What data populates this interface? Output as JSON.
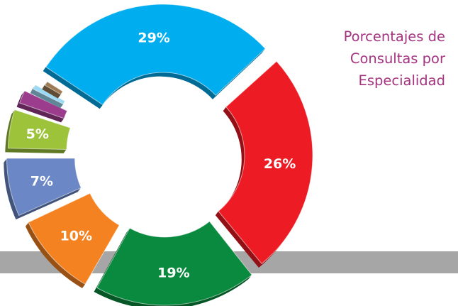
{
  "title_lines": [
    "Porcentajes de",
    "Consultas por",
    "Especialidad"
  ],
  "chart_data": {
    "type": "pie",
    "style": "3d exploded donut",
    "title": "Porcentajes de Consultas por Especialidad",
    "legend": "none",
    "slices": [
      {
        "value": 29,
        "label": "29%",
        "color": "#00adef"
      },
      {
        "value": 26,
        "label": "26%",
        "color": "#ed1c24"
      },
      {
        "value": 19,
        "label": "19%",
        "color": "#0a8a3e"
      },
      {
        "value": 10,
        "label": "10%",
        "color": "#f58220"
      },
      {
        "value": 7,
        "label": "7%",
        "color": "#6b87c6"
      },
      {
        "value": 5,
        "label": "5%",
        "color": "#9dc33b"
      },
      {
        "value": 2,
        "label": "",
        "color": "#9b3d8c"
      },
      {
        "value": 1,
        "label": "",
        "color": "#9bdaf4"
      },
      {
        "value": 1,
        "label": "",
        "color": "#9c7b55"
      }
    ]
  }
}
